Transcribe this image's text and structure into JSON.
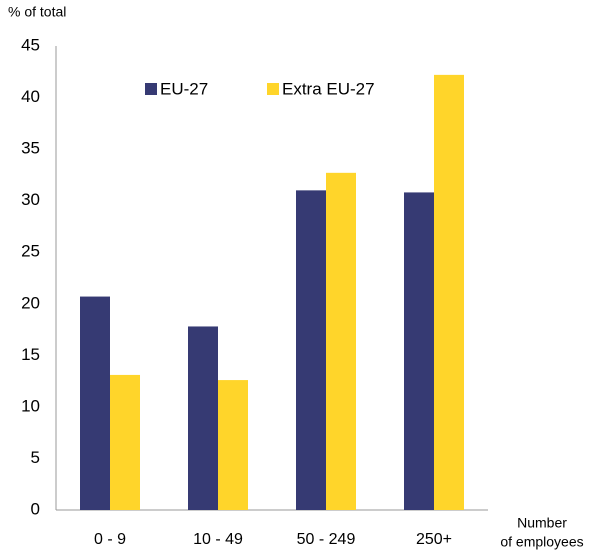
{
  "chart_data": {
    "type": "bar",
    "y_label": "% of total",
    "x_label": [
      "Number",
      "of employees"
    ],
    "categories": [
      "0 - 9",
      "10 - 49",
      "50 - 249",
      "250+"
    ],
    "series": [
      {
        "name": "EU-27",
        "color": "#363a73",
        "values": [
          20.7,
          17.8,
          31.0,
          30.8
        ]
      },
      {
        "name": "Extra EU-27",
        "color": "#ffd52a",
        "values": [
          13.1,
          12.6,
          32.7,
          42.2
        ]
      }
    ],
    "ylim": [
      0,
      45
    ],
    "yticks": [
      0,
      5,
      10,
      15,
      20,
      25,
      30,
      35,
      40,
      45
    ],
    "grid": false
  }
}
